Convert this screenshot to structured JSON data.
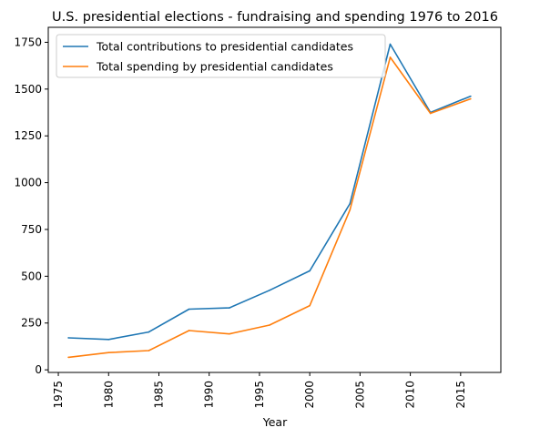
{
  "chart_data": {
    "type": "line",
    "title": "U.S. presidential elections - fundraising and spending 1976 to 2016",
    "xlabel": "Year",
    "ylabel": "",
    "x": [
      1976,
      1980,
      1984,
      1988,
      1992,
      1996,
      2000,
      2004,
      2008,
      2012,
      2016
    ],
    "series": [
      {
        "name": "Total contributions to presidential candidates",
        "color": "#1f77b4",
        "values": [
          171,
          162,
          202,
          324,
          331,
          425,
          529,
          888,
          1740,
          1375,
          1462
        ]
      },
      {
        "name": "Total spending by presidential candidates",
        "color": "#ff7f0e",
        "values": [
          67,
          92,
          103,
          210,
          192,
          239,
          343,
          855,
          1670,
          1370,
          1448
        ]
      }
    ],
    "xlim": [
      1974,
      2019
    ],
    "ylim": [
      -14,
      1830
    ],
    "xticks": [
      1975,
      1980,
      1985,
      1990,
      1995,
      2000,
      2005,
      2010,
      2015
    ],
    "yticks": [
      0,
      250,
      500,
      750,
      1000,
      1250,
      1500,
      1750
    ],
    "legend": "upper-left",
    "grid": false
  }
}
